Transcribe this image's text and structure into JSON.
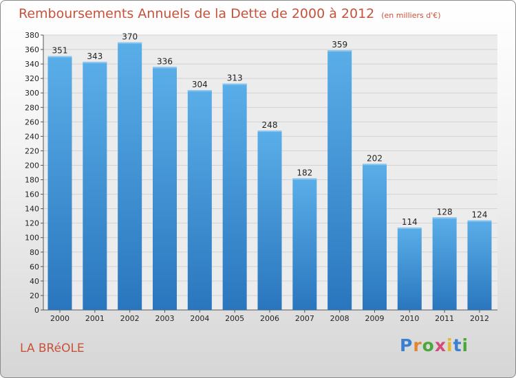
{
  "title": "Remboursements Annuels de la Dette de 2000 à 2012",
  "unit": "(en milliers d'€)",
  "commune": "LA BRéOLE",
  "logo": {
    "letters": [
      "P",
      "r",
      "o",
      "x",
      "i",
      "t",
      "i"
    ],
    "colors": [
      "#3a7fd0",
      "#e0862e",
      "#4aa83a",
      "#d64a7a",
      "#e6b82e",
      "#3a7fd0",
      "#4aa83a"
    ]
  },
  "chart_data": {
    "type": "bar",
    "title": "Remboursements Annuels de la Dette de 2000 à 2012",
    "xlabel": "",
    "ylabel": "",
    "categories": [
      "2000",
      "2001",
      "2002",
      "2003",
      "2004",
      "2005",
      "2006",
      "2007",
      "2008",
      "2009",
      "2010",
      "2011",
      "2012"
    ],
    "values": [
      351,
      343,
      370,
      336,
      304,
      313,
      248,
      182,
      359,
      202,
      114,
      128,
      124
    ],
    "ylim": [
      0,
      380
    ],
    "yticks": [
      0,
      20,
      40,
      60,
      80,
      100,
      120,
      140,
      160,
      180,
      200,
      220,
      240,
      260,
      280,
      300,
      320,
      340,
      360,
      380
    ],
    "grid": true,
    "bar_color": "#4f9fe0"
  }
}
